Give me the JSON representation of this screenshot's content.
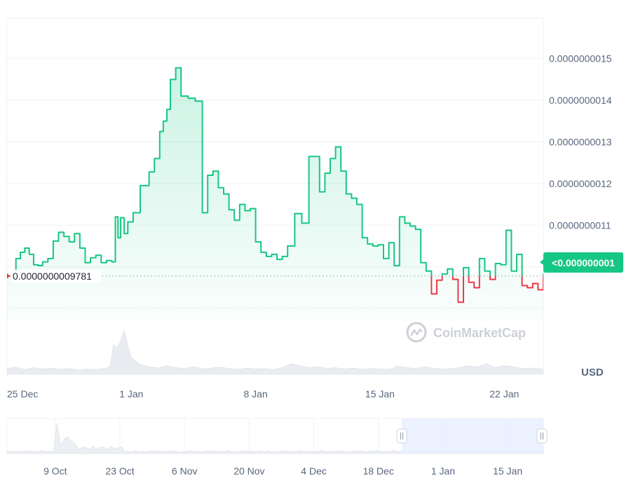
{
  "chart_data": {
    "type": "line",
    "currency": "USD",
    "watermark": "CoinMarketCap",
    "y_ticks": [
      "0.0000000015",
      "0.0000000014",
      "0.0000000013",
      "0.0000000012",
      "0.0000000011"
    ],
    "ylim": [
      8.7e-10,
      1.597e-09
    ],
    "x_ticks": [
      {
        "label": "25 Dec",
        "day": 0
      },
      {
        "label": "1 Jan",
        "day": 7
      },
      {
        "label": "8 Jan",
        "day": 14
      },
      {
        "label": "15 Jan",
        "day": 21
      },
      {
        "label": "22 Jan",
        "day": 28
      }
    ],
    "xlim": [
      0,
      30.2
    ],
    "reference_price": 9.781e-10,
    "reference_label": "0.0000000009781",
    "current_price_label": "<0.000000001",
    "price_series": {
      "x": [
        0,
        0.25,
        0.5,
        0.75,
        1.0,
        1.25,
        1.5,
        1.75,
        2.0,
        2.3,
        2.6,
        2.9,
        3.2,
        3.5,
        3.8,
        4.1,
        4.4,
        4.7,
        5.0,
        5.3,
        5.6,
        5.9,
        6.1,
        6.25,
        6.4,
        6.6,
        6.8,
        7.1,
        7.5,
        8.0,
        8.3,
        8.6,
        8.8,
        9.0,
        9.2,
        9.5,
        9.8,
        10.2,
        10.6,
        11.0,
        11.3,
        11.6,
        11.9,
        12.2,
        12.5,
        12.8,
        13.1,
        13.4,
        13.7,
        14.0,
        14.3,
        14.6,
        14.9,
        15.2,
        15.5,
        15.8,
        16.2,
        16.6,
        17.0,
        17.3,
        17.6,
        17.9,
        18.2,
        18.5,
        18.8,
        19.1,
        19.4,
        19.7,
        20.0,
        20.3,
        20.6,
        20.9,
        21.2,
        21.5,
        21.8,
        22.1,
        22.4,
        22.7,
        23.0,
        23.3,
        23.6,
        23.9,
        24.2,
        24.5,
        24.8,
        25.1,
        25.4,
        25.7,
        26.0,
        26.3,
        26.6,
        26.9,
        27.2,
        27.5,
        27.8,
        28.1,
        28.4,
        28.7,
        29.0,
        29.3,
        29.6,
        29.9,
        30.2
      ],
      "y": [
        9.78e-10,
        9.9e-10,
        1.02e-09,
        1.035e-09,
        1.045e-09,
        1.03e-09,
        1.005e-09,
        1.003e-09,
        1.012e-09,
        1.02e-09,
        1.062e-09,
        1.083e-09,
        1.073e-09,
        1.06e-09,
        1.08e-09,
        1.045e-09,
        1.01e-09,
        1.022e-09,
        1.028e-09,
        1.01e-09,
        1.015e-09,
        1.012e-09,
        1.12e-09,
        1.07e-09,
        1.118e-09,
        1.08e-09,
        1.108e-09,
        1.13e-09,
        1.195e-09,
        1.228e-09,
        1.26e-09,
        1.325e-09,
        1.35e-09,
        1.378e-09,
        1.45e-09,
        1.478e-09,
        1.41e-09,
        1.405e-09,
        1.398e-09,
        1.13e-09,
        1.22e-09,
        1.23e-09,
        1.19e-09,
        1.175e-09,
        1.137e-09,
        1.112e-09,
        1.15e-09,
        1.135e-09,
        1.14e-09,
        1.06e-09,
        1.035e-09,
        1.025e-09,
        1.03e-09,
        1.018e-09,
        1.025e-09,
        1.05e-09,
        1.128e-09,
        1.105e-09,
        1.265e-09,
        1.265e-09,
        1.18e-09,
        1.225e-09,
        1.26e-09,
        1.288e-09,
        1.23e-09,
        1.175e-09,
        1.165e-09,
        1.15e-09,
        1.07e-09,
        1.055e-09,
        1.05e-09,
        1.053e-09,
        1.02e-09,
        1.058e-09,
        1.003e-09,
        1.12e-09,
        1.105e-09,
        1.098e-09,
        1.09e-09,
        1.01e-09,
        9.9e-10,
        9.35e-10,
        9.68e-10,
        9.83e-10,
        9.95e-10,
        9.7e-10,
        9.15e-10,
        9.98e-10,
        9.63e-10,
        9.5e-10,
        1.02e-09,
        9.9e-10,
        9.7e-10,
        1.008e-09,
        1.005e-09,
        1.088e-09,
        9.9e-10,
        1.03e-09,
        9.55e-10,
        9.5e-10,
        9.6e-10,
        9.45e-10,
        9.85e-10
      ]
    },
    "volume_series": {
      "x": [
        0,
        0.5,
        1,
        1.5,
        2,
        2.5,
        3,
        3.5,
        4,
        4.5,
        5,
        5.5,
        5.8,
        6.0,
        6.2,
        6.4,
        6.6,
        6.8,
        7.0,
        7.5,
        8,
        8.5,
        9,
        9.5,
        10,
        10.5,
        11,
        11.5,
        12,
        12.5,
        13,
        13.5,
        14,
        14.5,
        15,
        15.5,
        16,
        16.5,
        17,
        17.5,
        18,
        18.5,
        19,
        19.5,
        20,
        20.5,
        21,
        21.5,
        22,
        22.5,
        23,
        23.5,
        24,
        24.5,
        25,
        25.5,
        26,
        26.5,
        27,
        27.5,
        28,
        28.5,
        29,
        29.5,
        30.2
      ],
      "v": [
        0.12,
        0.15,
        0.1,
        0.14,
        0.11,
        0.13,
        0.1,
        0.12,
        0.09,
        0.11,
        0.1,
        0.12,
        0.15,
        0.62,
        0.55,
        0.7,
        0.92,
        0.6,
        0.35,
        0.2,
        0.16,
        0.13,
        0.18,
        0.14,
        0.12,
        0.16,
        0.11,
        0.13,
        0.15,
        0.12,
        0.1,
        0.13,
        0.11,
        0.12,
        0.1,
        0.14,
        0.22,
        0.18,
        0.14,
        0.16,
        0.12,
        0.14,
        0.11,
        0.13,
        0.1,
        0.12,
        0.11,
        0.1,
        0.17,
        0.14,
        0.12,
        0.16,
        0.13,
        0.11,
        0.12,
        0.14,
        0.18,
        0.15,
        0.22,
        0.14,
        0.18,
        0.16,
        0.12,
        0.13,
        0.11
      ],
      "vmax": 1.0
    },
    "navigator": {
      "x_ticks": [
        "9 Oct",
        "23 Oct",
        "6 Nov",
        "20 Nov",
        "4 Dec",
        "18 Dec",
        "1 Jan",
        "15 Jan"
      ],
      "selection_fraction": [
        0.736,
        1.0
      ]
    },
    "colors": {
      "up": "#16c784",
      "down": "#ea3943",
      "badge": "#16c784",
      "grid": "#eff2f5",
      "axis_text": "#58667e",
      "selection": "#e8eefe"
    }
  }
}
